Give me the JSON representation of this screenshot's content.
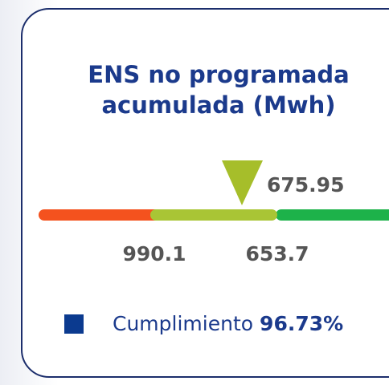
{
  "card": {
    "title_lines": [
      "ENS no programada",
      "acumulada (Mwh)"
    ],
    "marker_value": "675.95",
    "thresholds": [
      "990.1",
      "653.7"
    ],
    "legend": {
      "label": "Cumplimiento",
      "value": "96.73%"
    }
  }
}
